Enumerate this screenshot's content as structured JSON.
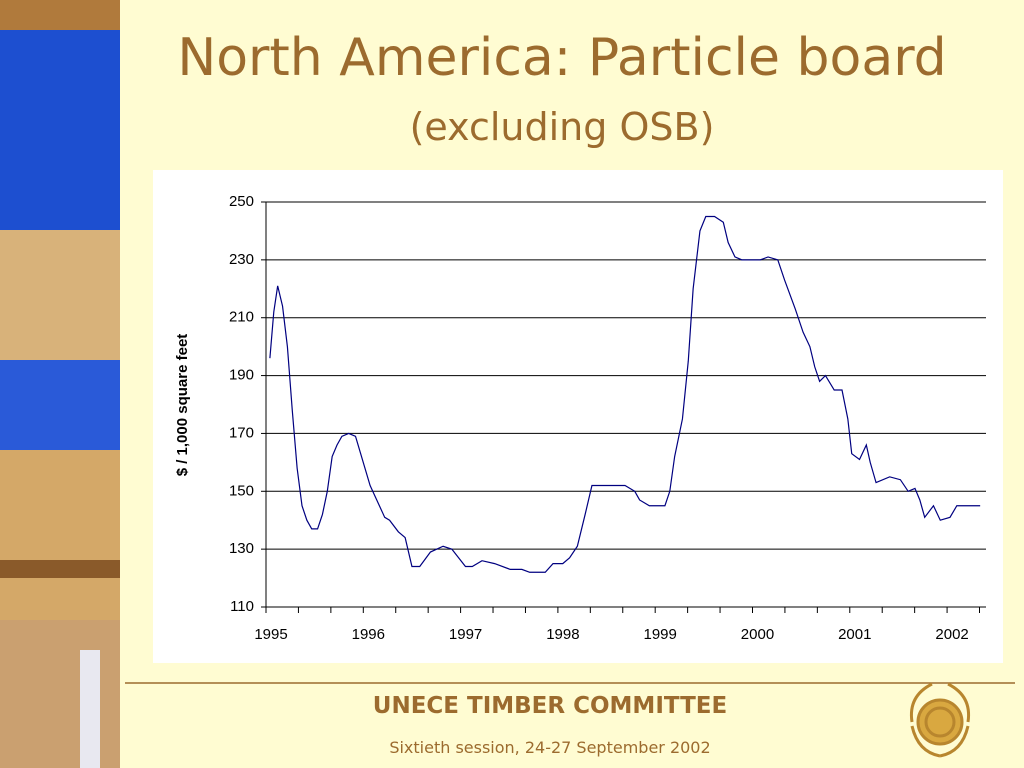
{
  "title": "North America: Particle board",
  "subtitle": "(excluding OSB)",
  "footer": {
    "org": "UNECE TIMBER COMMITTEE",
    "session": "Sixtieth session, 24-27 September 2002"
  },
  "chart_data": {
    "type": "line",
    "ylabel": "$ / 1,000 square feet",
    "x": [
      1995.04,
      1995.08,
      1995.12,
      1995.17,
      1995.22,
      1995.27,
      1995.32,
      1995.37,
      1995.42,
      1995.47,
      1995.53,
      1995.58,
      1995.63,
      1995.68,
      1995.73,
      1995.78,
      1995.85,
      1995.92,
      1996.07,
      1996.22,
      1996.27,
      1996.36,
      1996.43,
      1996.5,
      1996.58,
      1996.69,
      1996.82,
      1996.91,
      1997.05,
      1997.12,
      1997.22,
      1997.35,
      1997.51,
      1997.63,
      1997.71,
      1997.87,
      1997.95,
      1998.05,
      1998.12,
      1998.2,
      1998.28,
      1998.35,
      1998.43,
      1998.69,
      1998.79,
      1998.84,
      1998.94,
      1999.1,
      1999.15,
      1999.2,
      1999.28,
      1999.34,
      1999.39,
      1999.46,
      1999.52,
      1999.61,
      1999.7,
      1999.75,
      1999.82,
      1999.89,
      2000.08,
      2000.16,
      2000.26,
      2000.33,
      2000.44,
      2000.52,
      2000.59,
      2000.64,
      2000.69,
      2000.75,
      2000.84,
      2000.92,
      2000.98,
      2001.02,
      2001.1,
      2001.17,
      2001.21,
      2001.27,
      2001.41,
      2001.52,
      2001.6,
      2001.67,
      2001.72,
      2001.77,
      2001.86,
      2001.93,
      2002.03,
      2002.1,
      2002.18,
      2002.34
    ],
    "series": [
      {
        "name": "Particle board",
        "color": "#000080",
        "values": [
          196,
          212,
          221,
          214,
          200,
          178,
          158,
          145,
          140,
          137,
          137,
          142,
          150,
          162,
          166,
          169,
          170,
          169,
          152,
          141,
          140,
          136,
          134,
          124,
          124,
          129,
          131,
          130,
          124,
          124,
          126,
          125,
          123,
          123,
          122,
          122,
          125,
          125,
          127,
          131,
          142,
          152,
          152,
          152,
          150,
          147,
          145,
          145,
          150,
          162,
          175,
          195,
          220,
          240,
          245,
          245,
          243,
          236,
          231,
          230,
          230,
          231,
          230,
          223,
          213,
          205,
          200,
          193,
          188,
          190,
          185,
          185,
          175,
          163,
          161,
          166,
          160,
          153,
          155,
          154,
          150,
          151,
          147,
          141,
          145,
          140,
          141,
          145,
          145,
          145
        ]
      }
    ],
    "xlim": [
      1995,
      2002.4
    ],
    "xticks": [
      1995,
      1996,
      1997,
      1998,
      1999,
      2000,
      2001,
      2002
    ],
    "ylim": [
      110,
      250
    ],
    "yticks": [
      110,
      130,
      150,
      170,
      190,
      210,
      230,
      250
    ],
    "grid": true
  }
}
